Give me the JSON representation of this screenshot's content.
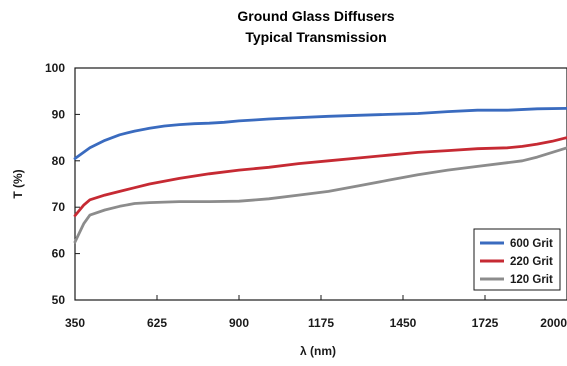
{
  "chart_data": {
    "type": "line",
    "title": "Ground Glass Diffusers",
    "subtitle": "Typical Transmission",
    "xlabel": "λ (nm)",
    "ylabel": "T (%)",
    "xlim": [
      350,
      2000
    ],
    "ylim": [
      50,
      100
    ],
    "xticks": [
      350,
      625,
      900,
      1175,
      1450,
      1725,
      2000
    ],
    "yticks": [
      50,
      60,
      70,
      80,
      90,
      100
    ],
    "grid": false,
    "legend_position": "bottom-right",
    "series": [
      {
        "name": "600 Grit",
        "color": "#3a6bbf",
        "x": [
          350,
          400,
          450,
          500,
          550,
          600,
          650,
          700,
          750,
          800,
          850,
          900,
          950,
          1000,
          1100,
          1200,
          1300,
          1400,
          1500,
          1600,
          1700,
          1800,
          1900,
          2000
        ],
        "y": [
          80.5,
          82.8,
          84.4,
          85.6,
          86.4,
          87.0,
          87.5,
          87.8,
          88.0,
          88.1,
          88.3,
          88.6,
          88.8,
          89.0,
          89.3,
          89.6,
          89.8,
          90.0,
          90.2,
          90.6,
          90.9,
          90.9,
          91.2,
          91.3
        ]
      },
      {
        "name": "220 Grit",
        "color": "#c62a33",
        "x": [
          350,
          380,
          400,
          450,
          500,
          550,
          600,
          700,
          800,
          900,
          1000,
          1100,
          1200,
          1300,
          1400,
          1500,
          1600,
          1700,
          1800,
          1850,
          1900,
          1950,
          2000
        ],
        "y": [
          68.2,
          70.5,
          71.6,
          72.6,
          73.4,
          74.2,
          75.0,
          76.2,
          77.2,
          78.0,
          78.6,
          79.4,
          80.0,
          80.6,
          81.2,
          81.8,
          82.2,
          82.6,
          82.8,
          83.1,
          83.6,
          84.2,
          85.0
        ]
      },
      {
        "name": "120 Grit",
        "color": "#8c8c8c",
        "x": [
          350,
          380,
          400,
          450,
          500,
          550,
          600,
          700,
          800,
          900,
          1000,
          1100,
          1200,
          1300,
          1400,
          1500,
          1600,
          1700,
          1800,
          1850,
          1900,
          1950,
          2000
        ],
        "y": [
          62.5,
          66.5,
          68.3,
          69.4,
          70.2,
          70.8,
          71.0,
          71.2,
          71.2,
          71.3,
          71.8,
          72.6,
          73.4,
          74.6,
          75.8,
          77.0,
          78.0,
          78.8,
          79.6,
          80.0,
          80.8,
          81.8,
          82.8
        ]
      }
    ]
  }
}
